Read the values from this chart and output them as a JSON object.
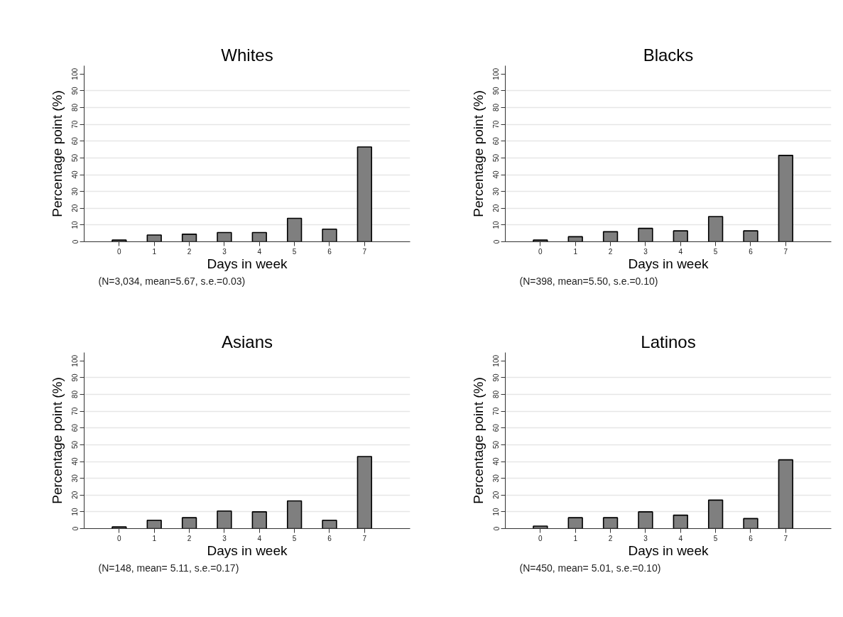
{
  "chart_data": [
    {
      "type": "bar",
      "title": "Whites",
      "xlabel": "Days in week",
      "ylabel": "Percentage point (%)",
      "x": [
        0,
        1,
        2,
        3,
        4,
        5,
        6,
        7
      ],
      "values": [
        1,
        4,
        4.5,
        5.5,
        5.5,
        14,
        7.5,
        56.5
      ],
      "color": "#7f7f7f",
      "xlim": [
        -1,
        8.3
      ],
      "xticks": [
        0,
        1,
        2,
        3,
        4,
        5,
        6,
        7
      ],
      "ylim": [
        0,
        105
      ],
      "yticks": [
        0,
        10,
        20,
        30,
        40,
        50,
        60,
        70,
        80,
        90,
        100
      ],
      "grid": "y",
      "annotations": [
        "(N=3,034, mean=5.67, s.e.=0.03)"
      ]
    },
    {
      "type": "bar",
      "title": "Blacks",
      "xlabel": "Days in week",
      "ylabel": "Percentage point (%)",
      "x": [
        0,
        1,
        2,
        3,
        4,
        5,
        6,
        7
      ],
      "values": [
        1,
        3,
        6,
        8,
        6.5,
        15,
        6.5,
        51.5
      ],
      "color": "#7f7f7f",
      "xlim": [
        -1,
        8.3
      ],
      "xticks": [
        0,
        1,
        2,
        3,
        4,
        5,
        6,
        7
      ],
      "ylim": [
        0,
        105
      ],
      "yticks": [
        0,
        10,
        20,
        30,
        40,
        50,
        60,
        70,
        80,
        90,
        100
      ],
      "grid": "y",
      "annotations": [
        "(N=398, mean=5.50, s.e.=0.10)"
      ]
    },
    {
      "type": "bar",
      "title": "Asians",
      "xlabel": "Days in week",
      "ylabel": "Percentage point (%)",
      "x": [
        0,
        1,
        2,
        3,
        4,
        5,
        6,
        7
      ],
      "values": [
        1,
        5,
        6.5,
        10.5,
        10,
        16.5,
        5,
        43
      ],
      "color": "#7f7f7f",
      "xlim": [
        -1,
        8.3
      ],
      "xticks": [
        0,
        1,
        2,
        3,
        4,
        5,
        6,
        7
      ],
      "ylim": [
        0,
        105
      ],
      "yticks": [
        0,
        10,
        20,
        30,
        40,
        50,
        60,
        70,
        80,
        90,
        100
      ],
      "grid": "y",
      "annotations": [
        "(N=148, mean= 5.11, s.e.=0.17)"
      ]
    },
    {
      "type": "bar",
      "title": "Latinos",
      "xlabel": "Days in week",
      "ylabel": "Percentage point (%)",
      "x": [
        0,
        1,
        2,
        3,
        4,
        5,
        6,
        7
      ],
      "values": [
        1.5,
        6.5,
        6.5,
        10,
        8,
        17,
        6,
        41
      ],
      "color": "#7f7f7f",
      "xlim": [
        -1,
        8.3
      ],
      "xticks": [
        0,
        1,
        2,
        3,
        4,
        5,
        6,
        7
      ],
      "ylim": [
        0,
        105
      ],
      "yticks": [
        0,
        10,
        20,
        30,
        40,
        50,
        60,
        70,
        80,
        90,
        100
      ],
      "grid": "y",
      "annotations": [
        "(N=450, mean= 5.01, s.e.=0.10)"
      ]
    }
  ]
}
